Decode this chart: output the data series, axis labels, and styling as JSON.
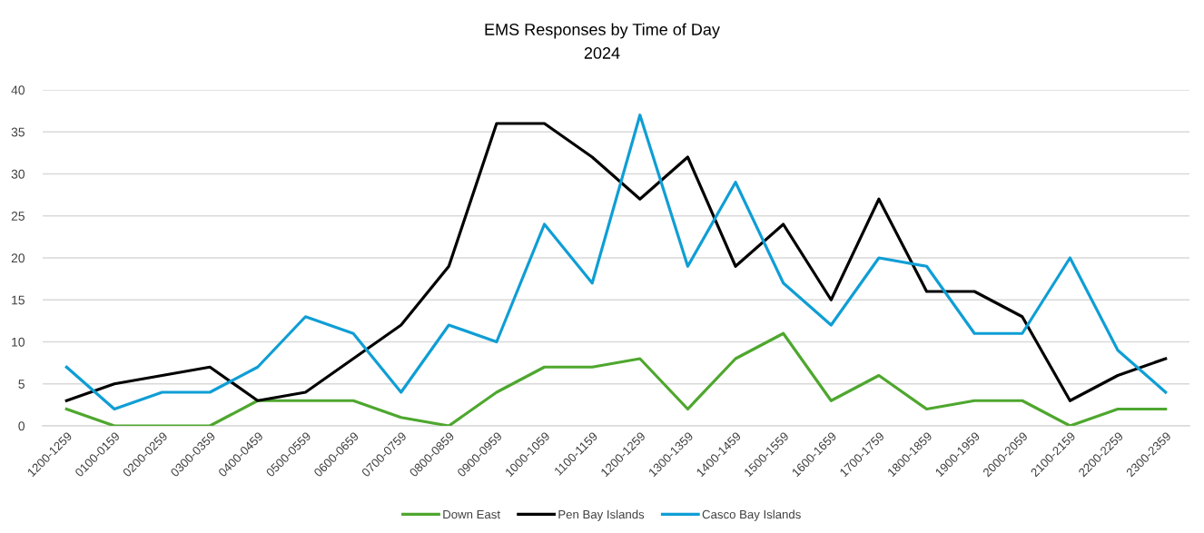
{
  "chart_data": {
    "type": "line",
    "title": "EMS Responses by Time of Day",
    "subtitle": "2024",
    "categories": [
      "1200-1259",
      "0100-0159",
      "0200-0259",
      "0300-0359",
      "0400-0459",
      "0500-0559",
      "0600-0659",
      "0700-0759",
      "0800-0859",
      "0900-0959",
      "1000-1059",
      "1100-1159",
      "1200-1259",
      "1300-1359",
      "1400-1459",
      "1500-1559",
      "1600-1659",
      "1700-1759",
      "1800-1859",
      "1900-1959",
      "2000-2059",
      "2100-2159",
      "2200-2259",
      "2300-2359"
    ],
    "series": [
      {
        "name": "Down East",
        "color": "#4ea72e",
        "values": [
          2,
          0,
          0,
          0,
          3,
          3,
          3,
          1,
          0,
          4,
          7,
          7,
          8,
          2,
          8,
          11,
          3,
          6,
          2,
          3,
          3,
          0,
          2,
          2
        ]
      },
      {
        "name": "Pen Bay Islands",
        "color": "#000000",
        "values": [
          3,
          5,
          6,
          7,
          3,
          4,
          8,
          12,
          19,
          36,
          36,
          32,
          27,
          32,
          19,
          24,
          15,
          27,
          16,
          16,
          13,
          3,
          6,
          8
        ]
      },
      {
        "name": "Casco Bay Islands",
        "color": "#0f9ed5",
        "values": [
          7,
          2,
          4,
          4,
          7,
          13,
          11,
          4,
          12,
          10,
          24,
          17,
          37,
          19,
          29,
          17,
          12,
          20,
          19,
          11,
          11,
          20,
          9,
          4
        ]
      }
    ],
    "ylim": [
      0,
      40
    ],
    "yticks": [
      0,
      5,
      10,
      15,
      20,
      25,
      30,
      35,
      40
    ],
    "grid": "y",
    "legend": "bottom",
    "line_style": "solid"
  }
}
